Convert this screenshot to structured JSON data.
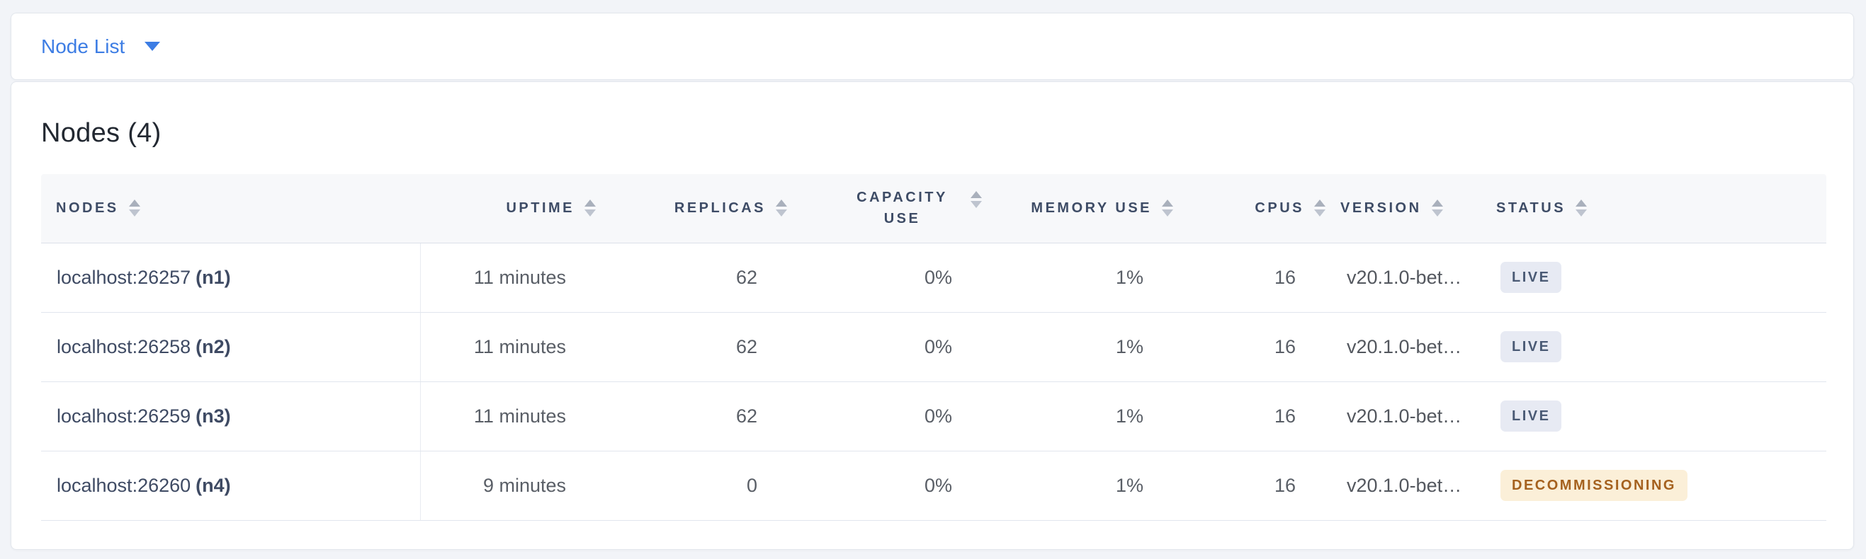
{
  "header_bar": {
    "dropdown_label": "Node List"
  },
  "panel": {
    "title": "Nodes (4)"
  },
  "table": {
    "columns": [
      {
        "label": "NODES",
        "align": "left"
      },
      {
        "label": "UPTIME",
        "align": "right"
      },
      {
        "label": "REPLICAS",
        "align": "right"
      },
      {
        "label": "CAPACITY USE",
        "align": "right"
      },
      {
        "label": "MEMORY USE",
        "align": "right"
      },
      {
        "label": "CPUS",
        "align": "right"
      },
      {
        "label": "VERSION",
        "align": "left"
      },
      {
        "label": "STATUS",
        "align": "left"
      }
    ],
    "rows": [
      {
        "address": "localhost:26257",
        "node_id": "(n1)",
        "uptime": "11 minutes",
        "replicas": "62",
        "capacity_use": "0%",
        "memory_use": "1%",
        "cpus": "16",
        "version": "v20.1.0-bet…",
        "status": "LIVE",
        "status_type": "live"
      },
      {
        "address": "localhost:26258",
        "node_id": "(n2)",
        "uptime": "11 minutes",
        "replicas": "62",
        "capacity_use": "0%",
        "memory_use": "1%",
        "cpus": "16",
        "version": "v20.1.0-bet…",
        "status": "LIVE",
        "status_type": "live"
      },
      {
        "address": "localhost:26259",
        "node_id": "(n3)",
        "uptime": "11 minutes",
        "replicas": "62",
        "capacity_use": "0%",
        "memory_use": "1%",
        "cpus": "16",
        "version": "v20.1.0-bet…",
        "status": "LIVE",
        "status_type": "live"
      },
      {
        "address": "localhost:26260",
        "node_id": "(n4)",
        "uptime": "9 minutes",
        "replicas": "0",
        "capacity_use": "0%",
        "memory_use": "1%",
        "cpus": "16",
        "version": "v20.1.0-bet…",
        "status": "DECOMMISSIONING",
        "status_type": "decommissioning"
      }
    ]
  },
  "colors": {
    "page_background": "#F2F4F8",
    "accent_blue": "#3D7DE4",
    "header_text": "#3E4C66",
    "live_badge_bg": "#E7EAF3",
    "live_badge_text": "#4A5A75",
    "decommissioning_badge_bg": "#FBEFD8",
    "decommissioning_badge_text": "#A5611E"
  }
}
